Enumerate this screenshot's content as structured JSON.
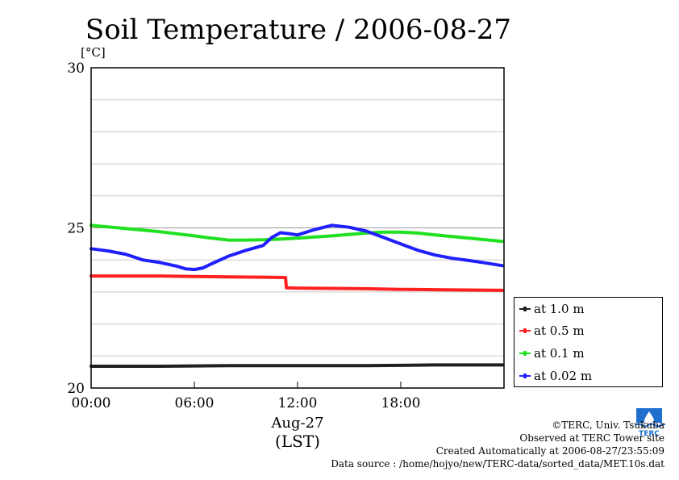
{
  "chart_data": {
    "type": "line",
    "title": "Soil Temperature / 2006-08-27",
    "ylabel": "[°C]",
    "xlabel_top": "Aug-27",
    "xlabel": "(LST)",
    "ylim": [
      20,
      30
    ],
    "xlim_hours": [
      0,
      24
    ],
    "yticks": [
      "20",
      "25",
      "30"
    ],
    "xticks": [
      {
        "hour": 0,
        "label": "00:00"
      },
      {
        "hour": 6,
        "label": "06:00"
      },
      {
        "hour": 12,
        "label": "12:00"
      },
      {
        "hour": 18,
        "label": "18:00"
      }
    ],
    "grid": true,
    "legend_position": "right-bottom",
    "series": [
      {
        "name": "at 1.0 m",
        "color": "#202020",
        "x": [
          0,
          4,
          8,
          12,
          16,
          20,
          23.9
        ],
        "y": [
          20.68,
          20.68,
          20.7,
          20.7,
          20.7,
          20.72,
          20.72
        ]
      },
      {
        "name": "at 0.5 m",
        "color": "#ff2020",
        "x": [
          0,
          2,
          4,
          6,
          8,
          10,
          11.3,
          11.35,
          12,
          14,
          16,
          18,
          20,
          22,
          23.9
        ],
        "y": [
          23.5,
          23.5,
          23.5,
          23.48,
          23.47,
          23.46,
          23.45,
          23.13,
          23.12,
          23.11,
          23.1,
          23.08,
          23.07,
          23.06,
          23.05
        ]
      },
      {
        "name": "at 0.1 m",
        "color": "#20e020",
        "x": [
          0,
          2,
          4,
          6,
          7,
          8,
          9,
          10,
          11,
          12,
          14,
          16,
          17,
          18,
          19,
          20,
          22,
          23.9
        ],
        "y": [
          25.08,
          24.98,
          24.88,
          24.75,
          24.68,
          24.62,
          24.62,
          24.63,
          24.65,
          24.68,
          24.75,
          24.84,
          24.87,
          24.87,
          24.84,
          24.78,
          24.68,
          24.58
        ]
      },
      {
        "name": "at 0.02 m",
        "color": "#2020ff",
        "x": [
          0,
          1,
          2,
          3,
          4,
          5,
          5.5,
          6,
          6.5,
          7,
          8,
          9,
          10,
          10.5,
          11,
          11.5,
          12,
          13,
          14,
          15,
          16,
          17,
          18,
          19,
          20,
          21,
          22,
          23,
          23.9
        ],
        "y": [
          24.35,
          24.28,
          24.18,
          24.0,
          23.92,
          23.8,
          23.72,
          23.7,
          23.75,
          23.88,
          24.12,
          24.3,
          24.45,
          24.7,
          24.85,
          24.82,
          24.78,
          24.95,
          25.08,
          25.02,
          24.9,
          24.7,
          24.5,
          24.3,
          24.15,
          24.05,
          23.98,
          23.9,
          23.82
        ]
      }
    ]
  },
  "credits": [
    "©TERC, Univ. Tsukuba",
    "Observed at TERC Tower site",
    "Created Automatically at 2006-08-27/23:55:09",
    "Data source : /home/hojyo/new/TERC-data/sorted_data/MET.10s.dat"
  ],
  "logo_icon": "terc-logo-icon",
  "logo_text": "TERC"
}
